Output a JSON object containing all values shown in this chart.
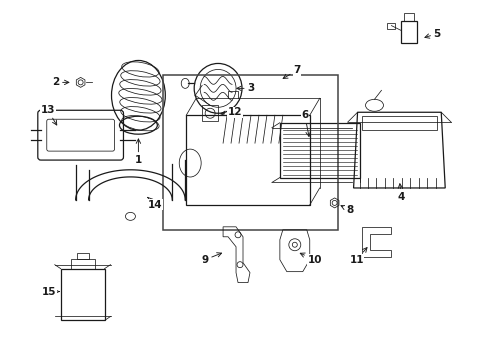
{
  "bg_color": "#ffffff",
  "line_color": "#1a1a1a",
  "box_color": "#555555",
  "fig_width": 4.89,
  "fig_height": 3.6,
  "dpi": 100
}
